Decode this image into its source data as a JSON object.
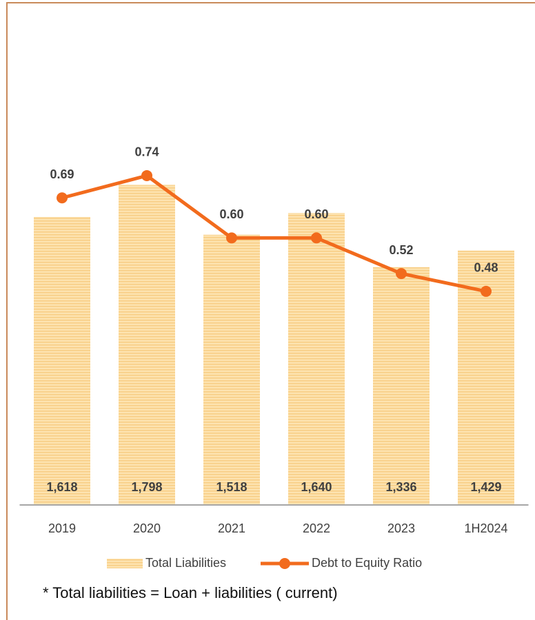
{
  "chart_data": {
    "type": "bar",
    "categories": [
      "2019",
      "2020",
      "2021",
      "2022",
      "2023",
      "1H2024"
    ],
    "series": [
      {
        "name": "Total Liabilities",
        "type": "bar",
        "color": "#fbd89a",
        "values": [
          1618,
          1798,
          1518,
          1640,
          1336,
          1429
        ],
        "value_labels": [
          "1,618",
          "1,798",
          "1,518",
          "1,640",
          "1,336",
          "1,429"
        ]
      },
      {
        "name": "Debt to Equity Ratio",
        "type": "line",
        "axis": "y2",
        "color": "#f26b1d",
        "values": [
          0.69,
          0.74,
          0.6,
          0.6,
          0.52,
          0.48
        ],
        "value_labels": [
          "0.69",
          "0.74",
          "0.60",
          "0.60",
          "0.52",
          "0.48"
        ]
      }
    ],
    "ylim": [
      0,
      2500
    ],
    "y2lim": [
      0,
      1.0
    ],
    "grid": false,
    "legend": "bottom",
    "footnote": "* Total liabilities =  Loan + liabilities ( current)"
  }
}
